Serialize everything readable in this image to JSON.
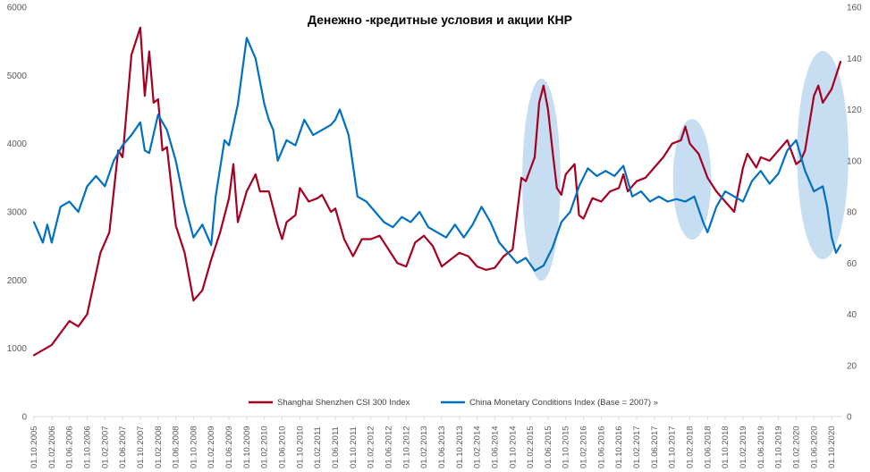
{
  "chart_data": {
    "type": "line",
    "title": "Денежно -кредитные условия и акции КНР",
    "xlabel": "",
    "ylabel": "",
    "y_left": {
      "min": 0,
      "max": 6000,
      "ticks": [
        "0",
        "1000",
        "2000",
        "3000",
        "4000",
        "5000",
        "6000"
      ]
    },
    "y_right": {
      "min": 0,
      "max": 160,
      "ticks": [
        "0",
        "20",
        "40",
        "60",
        "80",
        "100",
        "120",
        "140",
        "160"
      ]
    },
    "grid": false,
    "legend_position": "bottom",
    "x_start": "2005-10",
    "x_end": "2020-12",
    "x_ticks": [
      "01.10.2005",
      "01.02.2006",
      "01.06.2006",
      "01.10.2006",
      "01.02.2007",
      "01.06.2007",
      "01.10.2007",
      "01.02.2008",
      "01.06.2008",
      "01.10.2008",
      "01.02.2009",
      "01.06.2009",
      "01.10.2009",
      "01.02.2010",
      "01.06.2010",
      "01.10.2010",
      "01.02.2011",
      "01.06.2011",
      "01.10.2011",
      "01.02.2012",
      "01.06.2012",
      "01.10.2012",
      "01.02.2013",
      "01.06.2013",
      "01.10.2013",
      "01.02.2014",
      "01.06.2014",
      "01.10.2014",
      "01.02.2015",
      "01.06.2015",
      "01.10.2015",
      "01.02.2016",
      "01.06.2016",
      "01.10.2016",
      "01.02.2017",
      "01.06.2017",
      "01.10.2017",
      "01.02.2018",
      "01.06.2018",
      "01.10.2018",
      "01.02.2019",
      "01.06.2019",
      "01.10.2019",
      "01.02.2020",
      "01.06.2020",
      "01.10.2020"
    ],
    "highlight_ellipses": [
      {
        "from": "2015-01",
        "to": "2015-08"
      },
      {
        "from": "2017-11",
        "to": "2018-06"
      },
      {
        "from": "2020-03",
        "to": "2021-01"
      }
    ],
    "series": [
      {
        "name": "Shanghai Shenzhen CSI 300 Index",
        "axis": "left",
        "color": "#a50021",
        "points": [
          [
            "2005-10",
            900
          ],
          [
            "2006-02",
            1050
          ],
          [
            "2006-06",
            1400
          ],
          [
            "2006-08",
            1320
          ],
          [
            "2006-10",
            1500
          ],
          [
            "2007-01",
            2400
          ],
          [
            "2007-03",
            2700
          ],
          [
            "2007-05",
            3900
          ],
          [
            "2007-06",
            3800
          ],
          [
            "2007-08",
            5300
          ],
          [
            "2007-10",
            5700
          ],
          [
            "2007-11",
            4700
          ],
          [
            "2007-12",
            5350
          ],
          [
            "2008-01",
            4600
          ],
          [
            "2008-02",
            4650
          ],
          [
            "2008-03",
            3900
          ],
          [
            "2008-04",
            3950
          ],
          [
            "2008-06",
            2800
          ],
          [
            "2008-08",
            2400
          ],
          [
            "2008-10",
            1700
          ],
          [
            "2008-12",
            1850
          ],
          [
            "2009-02",
            2300
          ],
          [
            "2009-04",
            2700
          ],
          [
            "2009-06",
            3200
          ],
          [
            "2009-07",
            3700
          ],
          [
            "2009-08",
            2850
          ],
          [
            "2009-10",
            3300
          ],
          [
            "2009-12",
            3550
          ],
          [
            "2010-01",
            3300
          ],
          [
            "2010-03",
            3300
          ],
          [
            "2010-05",
            2800
          ],
          [
            "2010-06",
            2600
          ],
          [
            "2010-07",
            2850
          ],
          [
            "2010-09",
            2950
          ],
          [
            "2010-10",
            3350
          ],
          [
            "2010-12",
            3150
          ],
          [
            "2011-02",
            3200
          ],
          [
            "2011-03",
            3250
          ],
          [
            "2011-05",
            3000
          ],
          [
            "2011-06",
            3050
          ],
          [
            "2011-08",
            2600
          ],
          [
            "2011-10",
            2350
          ],
          [
            "2011-12",
            2600
          ],
          [
            "2012-02",
            2600
          ],
          [
            "2012-04",
            2650
          ],
          [
            "2012-06",
            2450
          ],
          [
            "2012-08",
            2250
          ],
          [
            "2012-10",
            2200
          ],
          [
            "2012-12",
            2550
          ],
          [
            "2013-02",
            2650
          ],
          [
            "2013-04",
            2500
          ],
          [
            "2013-06",
            2200
          ],
          [
            "2013-08",
            2300
          ],
          [
            "2013-10",
            2400
          ],
          [
            "2013-12",
            2350
          ],
          [
            "2014-02",
            2200
          ],
          [
            "2014-04",
            2150
          ],
          [
            "2014-06",
            2180
          ],
          [
            "2014-08",
            2350
          ],
          [
            "2014-10",
            2450
          ],
          [
            "2014-12",
            3500
          ],
          [
            "2015-01",
            3450
          ],
          [
            "2015-03",
            3800
          ],
          [
            "2015-04",
            4600
          ],
          [
            "2015-05",
            4850
          ],
          [
            "2015-06",
            4500
          ],
          [
            "2015-07",
            3900
          ],
          [
            "2015-08",
            3350
          ],
          [
            "2015-09",
            3250
          ],
          [
            "2015-10",
            3550
          ],
          [
            "2015-12",
            3700
          ],
          [
            "2016-01",
            2950
          ],
          [
            "2016-02",
            2900
          ],
          [
            "2016-04",
            3200
          ],
          [
            "2016-06",
            3150
          ],
          [
            "2016-08",
            3300
          ],
          [
            "2016-10",
            3350
          ],
          [
            "2016-11",
            3550
          ],
          [
            "2016-12",
            3300
          ],
          [
            "2017-02",
            3450
          ],
          [
            "2017-04",
            3500
          ],
          [
            "2017-06",
            3650
          ],
          [
            "2017-08",
            3800
          ],
          [
            "2017-10",
            4000
          ],
          [
            "2017-12",
            4050
          ],
          [
            "2018-01",
            4250
          ],
          [
            "2018-02",
            4000
          ],
          [
            "2018-04",
            3850
          ],
          [
            "2018-06",
            3500
          ],
          [
            "2018-08",
            3300
          ],
          [
            "2018-10",
            3150
          ],
          [
            "2018-12",
            3000
          ],
          [
            "2019-02",
            3650
          ],
          [
            "2019-03",
            3850
          ],
          [
            "2019-05",
            3650
          ],
          [
            "2019-06",
            3800
          ],
          [
            "2019-08",
            3750
          ],
          [
            "2019-10",
            3900
          ],
          [
            "2019-12",
            4050
          ],
          [
            "2020-02",
            3700
          ],
          [
            "2020-03",
            3750
          ],
          [
            "2020-04",
            3900
          ],
          [
            "2020-06",
            4700
          ],
          [
            "2020-07",
            4850
          ],
          [
            "2020-08",
            4600
          ],
          [
            "2020-10",
            4800
          ],
          [
            "2020-12",
            5200
          ]
        ]
      },
      {
        "name": "China Monetary Conditions Index (Base = 2007) »",
        "axis": "right",
        "color": "#0070c0",
        "points": [
          [
            "2005-10",
            76
          ],
          [
            "2005-12",
            68
          ],
          [
            "2006-01",
            75
          ],
          [
            "2006-02",
            68
          ],
          [
            "2006-04",
            82
          ],
          [
            "2006-06",
            84
          ],
          [
            "2006-08",
            80
          ],
          [
            "2006-10",
            90
          ],
          [
            "2006-12",
            94
          ],
          [
            "2007-02",
            90
          ],
          [
            "2007-04",
            100
          ],
          [
            "2007-06",
            106
          ],
          [
            "2007-08",
            110
          ],
          [
            "2007-10",
            115
          ],
          [
            "2007-11",
            104
          ],
          [
            "2007-12",
            103
          ],
          [
            "2008-02",
            118
          ],
          [
            "2008-04",
            112
          ],
          [
            "2008-06",
            100
          ],
          [
            "2008-08",
            83
          ],
          [
            "2008-10",
            70
          ],
          [
            "2008-12",
            75
          ],
          [
            "2009-02",
            67
          ],
          [
            "2009-03",
            86
          ],
          [
            "2009-05",
            108
          ],
          [
            "2009-06",
            106
          ],
          [
            "2009-08",
            122
          ],
          [
            "2009-10",
            148
          ],
          [
            "2009-12",
            140
          ],
          [
            "2010-02",
            122
          ],
          [
            "2010-03",
            116
          ],
          [
            "2010-04",
            112
          ],
          [
            "2010-05",
            100
          ],
          [
            "2010-07",
            108
          ],
          [
            "2010-09",
            106
          ],
          [
            "2010-11",
            116
          ],
          [
            "2011-01",
            110
          ],
          [
            "2011-03",
            112
          ],
          [
            "2011-05",
            114
          ],
          [
            "2011-06",
            116
          ],
          [
            "2011-07",
            120
          ],
          [
            "2011-09",
            110
          ],
          [
            "2011-11",
            86
          ],
          [
            "2012-01",
            84
          ],
          [
            "2012-03",
            80
          ],
          [
            "2012-05",
            76
          ],
          [
            "2012-07",
            74
          ],
          [
            "2012-09",
            78
          ],
          [
            "2012-11",
            76
          ],
          [
            "2013-01",
            80
          ],
          [
            "2013-03",
            74
          ],
          [
            "2013-05",
            72
          ],
          [
            "2013-07",
            70
          ],
          [
            "2013-09",
            75
          ],
          [
            "2013-11",
            70
          ],
          [
            "2014-01",
            75
          ],
          [
            "2014-03",
            82
          ],
          [
            "2014-05",
            76
          ],
          [
            "2014-07",
            68
          ],
          [
            "2014-09",
            64
          ],
          [
            "2014-11",
            60
          ],
          [
            "2015-01",
            62
          ],
          [
            "2015-03",
            57
          ],
          [
            "2015-05",
            59
          ],
          [
            "2015-07",
            66
          ],
          [
            "2015-09",
            76
          ],
          [
            "2015-11",
            80
          ],
          [
            "2016-01",
            90
          ],
          [
            "2016-03",
            97
          ],
          [
            "2016-05",
            94
          ],
          [
            "2016-07",
            96
          ],
          [
            "2016-09",
            94
          ],
          [
            "2016-11",
            98
          ],
          [
            "2017-01",
            86
          ],
          [
            "2017-03",
            88
          ],
          [
            "2017-05",
            84
          ],
          [
            "2017-07",
            86
          ],
          [
            "2017-09",
            84
          ],
          [
            "2017-11",
            85
          ],
          [
            "2018-01",
            84
          ],
          [
            "2018-03",
            86
          ],
          [
            "2018-05",
            76
          ],
          [
            "2018-06",
            72
          ],
          [
            "2018-08",
            82
          ],
          [
            "2018-10",
            88
          ],
          [
            "2018-12",
            86
          ],
          [
            "2019-02",
            84
          ],
          [
            "2019-04",
            92
          ],
          [
            "2019-06",
            96
          ],
          [
            "2019-08",
            91
          ],
          [
            "2019-10",
            95
          ],
          [
            "2019-12",
            104
          ],
          [
            "2020-02",
            108
          ],
          [
            "2020-04",
            96
          ],
          [
            "2020-06",
            88
          ],
          [
            "2020-08",
            90
          ],
          [
            "2020-09",
            82
          ],
          [
            "2020-10",
            70
          ],
          [
            "2020-11",
            64
          ],
          [
            "2020-12",
            67
          ]
        ]
      }
    ]
  }
}
